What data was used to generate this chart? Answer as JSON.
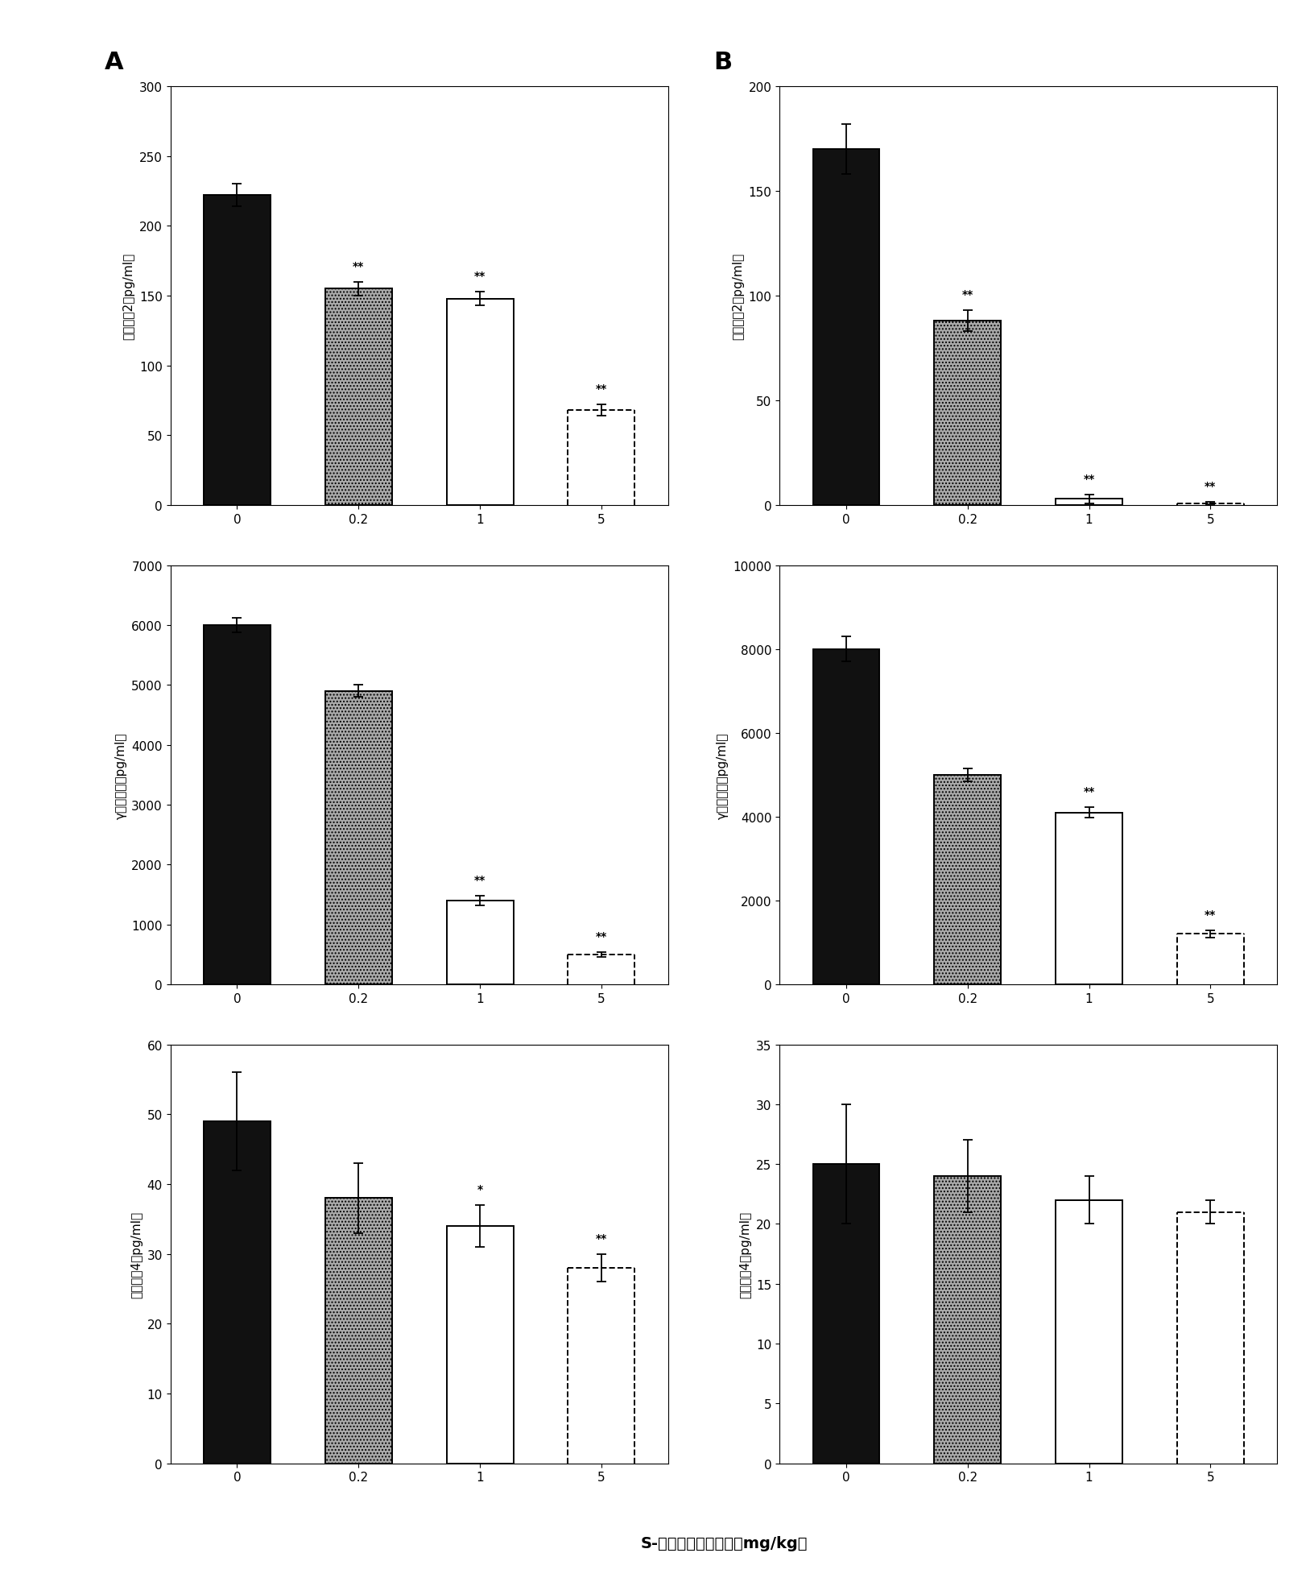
{
  "panel_A": {
    "IL2": {
      "values": [
        222,
        155,
        148,
        68
      ],
      "errors": [
        8,
        5,
        5,
        4
      ],
      "ylim": [
        0,
        300
      ],
      "yticks": [
        0,
        50,
        100,
        150,
        200,
        250,
        300
      ],
      "ylabel": "白介素－2（pg/ml）",
      "significance": [
        "",
        "**",
        "**",
        "**"
      ]
    },
    "IFN": {
      "values": [
        6000,
        4900,
        1400,
        500
      ],
      "errors": [
        120,
        100,
        80,
        40
      ],
      "ylim": [
        0,
        7000
      ],
      "yticks": [
        0,
        1000,
        2000,
        3000,
        4000,
        5000,
        6000,
        7000
      ],
      "ylabel": "γ－干扰素（pg/ml）",
      "significance": [
        "",
        "",
        "**",
        "**"
      ]
    },
    "IL4": {
      "values": [
        49,
        38,
        34,
        28
      ],
      "errors": [
        7,
        5,
        3,
        2
      ],
      "ylim": [
        0,
        60
      ],
      "yticks": [
        0,
        10,
        20,
        30,
        40,
        50,
        60
      ],
      "ylabel": "白介素－4（pg/ml）",
      "significance": [
        "",
        "",
        "*",
        "**"
      ]
    }
  },
  "panel_B": {
    "IL2": {
      "values": [
        170,
        88,
        3,
        1
      ],
      "errors": [
        12,
        5,
        2,
        0.5
      ],
      "ylim": [
        0,
        200
      ],
      "yticks": [
        0,
        50,
        100,
        150,
        200
      ],
      "ylabel": "白介素－2（pg/ml）",
      "significance": [
        "",
        "**",
        "**",
        "**"
      ]
    },
    "IFN": {
      "values": [
        8000,
        5000,
        4100,
        1200
      ],
      "errors": [
        300,
        150,
        120,
        80
      ],
      "ylim": [
        0,
        10000
      ],
      "yticks": [
        0,
        2000,
        4000,
        6000,
        8000,
        10000
      ],
      "ylabel": "γ－干扰素（pg/ml）",
      "significance": [
        "",
        "",
        "**",
        "**"
      ]
    },
    "IL4": {
      "values": [
        25,
        24,
        22,
        21
      ],
      "errors": [
        5,
        3,
        2,
        1
      ],
      "ylim": [
        0,
        35
      ],
      "yticks": [
        0,
        5,
        10,
        15,
        20,
        25,
        30,
        35
      ],
      "ylabel": "白介素－4（pg/ml）",
      "significance": [
        "",
        "",
        "",
        ""
      ]
    }
  },
  "x_labels": [
    "0",
    "0.2",
    "1",
    "5"
  ],
  "xlabel": "S-腺苷同型半胱氨酸（mg/kg）",
  "panel_labels": [
    "A",
    "B"
  ],
  "bar_styles": [
    {
      "color": "#111111",
      "hatch": null,
      "edgecolor": "black",
      "linestyle": "solid"
    },
    {
      "color": "#aaaaaa",
      "hatch": "....",
      "edgecolor": "black",
      "linestyle": "solid"
    },
    {
      "color": "white",
      "hatch": null,
      "edgecolor": "black",
      "linestyle": "solid"
    },
    {
      "color": "white",
      "hatch": null,
      "edgecolor": "black",
      "linestyle": "dashed"
    }
  ]
}
